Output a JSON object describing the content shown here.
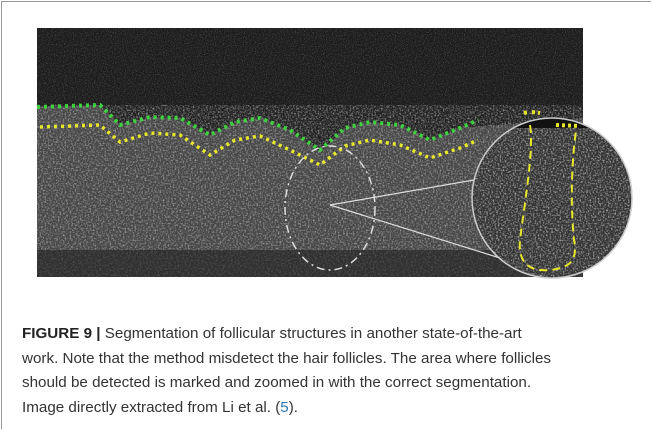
{
  "figure": {
    "label": "FIGURE 9 |",
    "caption_lines": [
      "Segmentation of follicular structures in another state-of-the-art",
      "work. Note that the method misdetect the hair follicles. The area where follicles",
      "should be detected is marked and zoomed in with the correct segmentation.",
      "Image directly extracted from Li et al. ("
    ],
    "reference": "5",
    "caption_end": ")."
  }
}
